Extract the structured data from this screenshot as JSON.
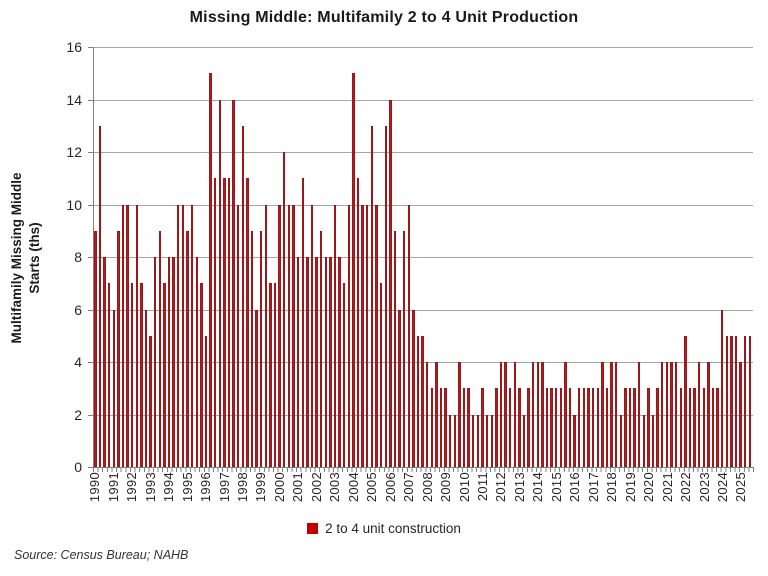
{
  "title": "Missing Middle: Multifamily 2 to 4 Unit Production",
  "source_note": "Source: Census Bureau; NAHB",
  "legend": {
    "label": "2 to 4 unit construction",
    "swatch_color": "#c00000"
  },
  "y_axis": {
    "label_line1": "Multifamily Missing Middle",
    "label_line2": "Starts (ths)",
    "tick_values": [
      0,
      2,
      4,
      6,
      8,
      10,
      12,
      14,
      16
    ],
    "max": 16
  },
  "x_axis": {
    "year_labels": [
      "1990",
      "1991",
      "1992",
      "1993",
      "1994",
      "1995",
      "1996",
      "1997",
      "1998",
      "1999",
      "2000",
      "2001",
      "2002",
      "2003",
      "2004",
      "2005",
      "2006",
      "2007",
      "2008",
      "2009",
      "2010",
      "2011",
      "2012",
      "2013",
      "2014",
      "2015",
      "2016",
      "2017",
      "2018",
      "2019",
      "2020",
      "2021",
      "2022",
      "2023",
      "2024",
      "2025"
    ]
  },
  "colors": {
    "bar_fill": "#b01d20",
    "bar_edge": "#8c1417",
    "legend_swatch": "#c00000",
    "gridline": "#a6a6a6",
    "axis_line": "#808080",
    "text": "#262626"
  },
  "chart_data": {
    "type": "bar",
    "title": "Missing Middle: Multifamily 2 to 4 Unit Production",
    "xlabel": "",
    "ylabel": "Multifamily Missing Middle Starts (ths)",
    "ylim": [
      0,
      16
    ],
    "yticks": [
      0,
      2,
      4,
      6,
      8,
      10,
      12,
      14,
      16
    ],
    "grid": true,
    "legend_position": "bottom",
    "frequency": "quarterly",
    "x_start_period": "1990Q1",
    "x_end_period": "2025Q3",
    "series": [
      {
        "name": "2 to 4 unit construction",
        "values_by_year": {
          "1990": [
            9,
            13,
            8,
            7
          ],
          "1991": [
            6,
            9,
            10,
            10
          ],
          "1992": [
            7,
            10,
            7,
            6
          ],
          "1993": [
            5,
            8,
            9,
            7
          ],
          "1994": [
            8,
            8,
            10,
            10
          ],
          "1995": [
            9,
            10,
            8,
            7
          ],
          "1996": [
            5,
            15,
            11,
            14
          ],
          "1997": [
            11,
            11,
            14,
            10
          ],
          "1998": [
            13,
            11,
            9,
            6
          ],
          "1999": [
            9,
            10,
            7,
            7
          ],
          "2000": [
            10,
            12,
            10,
            10
          ],
          "2001": [
            8,
            11,
            8,
            10
          ],
          "2002": [
            8,
            9,
            8,
            8
          ],
          "2003": [
            10,
            8,
            7,
            10
          ],
          "2004": [
            15,
            11,
            10,
            10
          ],
          "2005": [
            13,
            10,
            7,
            13
          ],
          "2006": [
            14,
            9,
            6,
            9
          ],
          "2007": [
            10,
            6,
            5,
            5
          ],
          "2008": [
            4,
            3,
            4,
            3
          ],
          "2009": [
            3,
            2,
            2,
            4
          ],
          "2010": [
            3,
            3,
            2,
            2
          ],
          "2011": [
            3,
            2,
            2,
            3
          ],
          "2012": [
            4,
            4,
            3,
            4
          ],
          "2013": [
            3,
            2,
            3,
            4
          ],
          "2014": [
            4,
            4,
            3,
            3
          ],
          "2015": [
            3,
            3,
            4,
            3
          ],
          "2016": [
            2,
            3,
            3,
            3
          ],
          "2017": [
            3,
            3,
            4,
            3
          ],
          "2018": [
            4,
            4,
            2,
            3
          ],
          "2019": [
            3,
            3,
            4,
            2
          ],
          "2020": [
            3,
            2,
            3,
            4
          ],
          "2021": [
            4,
            4,
            4,
            3
          ],
          "2022": [
            5,
            3,
            3,
            4
          ],
          "2023": [
            3,
            4,
            3,
            3
          ],
          "2024": [
            6,
            5,
            5,
            5
          ],
          "2025": [
            4,
            5,
            5
          ]
        }
      }
    ]
  }
}
